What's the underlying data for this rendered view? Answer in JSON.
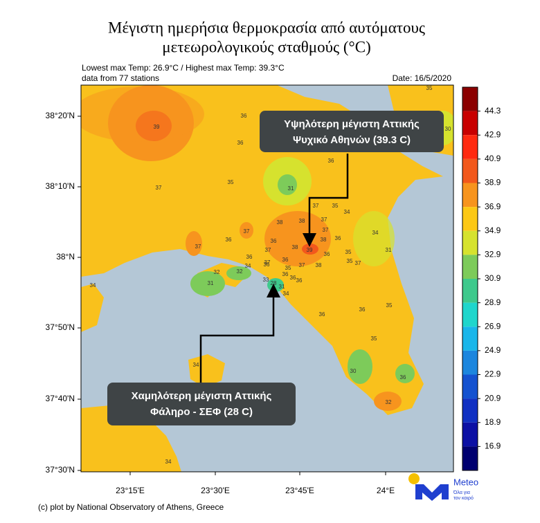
{
  "header": {
    "title": [
      "Μέγιστη ημερήσια θερμοκρασία από αυτόματους",
      "μετεωρολογικούς σταθμούς (°C)"
    ],
    "stats": "Lowest max Temp: 26.9°C / Highest max Temp: 39.3°C",
    "stations": "data from 77 stations",
    "date": "Date: 16/5/2020"
  },
  "map": {
    "lat_labels": [
      "38°20'N",
      "38°10'N",
      "38°N",
      "37°50'N",
      "37°40'N",
      "37°30'N"
    ],
    "lon_labels": [
      "23°15'E",
      "23°30'E",
      "23°45'E",
      "24°E"
    ],
    "station_values": [
      39,
      36,
      36,
      35,
      30,
      36,
      35,
      37,
      31,
      37,
      35,
      34,
      37,
      37,
      38,
      38,
      37,
      34,
      36,
      37,
      36,
      38,
      36,
      37,
      38,
      39,
      36,
      35,
      31,
      36,
      37,
      36,
      37,
      38,
      35,
      37,
      34,
      36,
      35,
      32,
      32,
      36,
      36,
      36,
      33,
      28,
      31,
      34,
      31,
      34,
      35,
      36,
      36,
      35,
      34,
      30,
      36,
      32,
      34
    ]
  },
  "colorbar": {
    "labels": [
      44.3,
      42.9,
      40.9,
      38.9,
      36.9,
      34.9,
      32.9,
      30.9,
      28.9,
      26.9,
      24.9,
      22.9,
      20.9,
      18.9,
      16.9
    ],
    "colors": [
      "#8b0000",
      "#c80000",
      "#ff2a10",
      "#f2581c",
      "#f7941e",
      "#fcc815",
      "#d6e22e",
      "#7dcb5a",
      "#3ec98c",
      "#1fd6cc",
      "#19b6ea",
      "#1c86de",
      "#1452d0",
      "#1030c2",
      "#0c10a4",
      "#000070"
    ]
  },
  "annotations": [
    {
      "lines": [
        "Υψηλότερη μέγιστη Αττικής",
        "Ψυχικό Αθηνών (39.3 C)"
      ]
    },
    {
      "lines": [
        "Χαμηλότερη μέγιστη Αττικής",
        "Φάληρο - ΣΕΦ (28 C)"
      ]
    }
  ],
  "footer": {
    "credit": "(c) plot by National Observatory of Athens, Greece",
    "logo": {
      "name": "Meteo",
      "tagline": [
        "Όλα για",
        "τον καιρό"
      ]
    }
  }
}
